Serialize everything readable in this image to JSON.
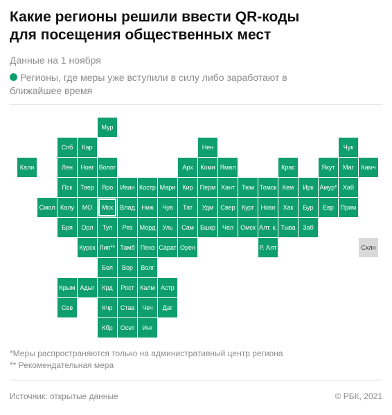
{
  "title": "Какие регионы решили ввести QR-коды\nдля посещения общественных мест",
  "subtitle": "Данные на 1 ноября",
  "legend": {
    "label": "Регионы, где меры уже вступили в силу либо заработают в ближайшее время",
    "color": "#0f9e6e"
  },
  "colors": {
    "active": "#0f9e6e",
    "inactive": "#d9d9d9"
  },
  "regions": [
    {
      "label": "Мур",
      "row": 0,
      "col": 5,
      "status": "active"
    },
    {
      "label": "Спб",
      "row": 1,
      "col": 3,
      "status": "active"
    },
    {
      "label": "Кар",
      "row": 1,
      "col": 4,
      "status": "active"
    },
    {
      "label": "Нен",
      "row": 1,
      "col": 10,
      "status": "active"
    },
    {
      "label": "Чук",
      "row": 1,
      "col": 17,
      "status": "active"
    },
    {
      "label": "Кали",
      "row": 2,
      "col": 1,
      "status": "active"
    },
    {
      "label": "Лен",
      "row": 2,
      "col": 3,
      "status": "active"
    },
    {
      "label": "Новг",
      "row": 2,
      "col": 4,
      "status": "active"
    },
    {
      "label": "Волог",
      "row": 2,
      "col": 5,
      "status": "active"
    },
    {
      "label": "Арх",
      "row": 2,
      "col": 9,
      "status": "active"
    },
    {
      "label": "Коми",
      "row": 2,
      "col": 10,
      "status": "active"
    },
    {
      "label": "Ямал",
      "row": 2,
      "col": 11,
      "status": "active"
    },
    {
      "label": "Крас",
      "row": 2,
      "col": 14,
      "status": "active"
    },
    {
      "label": "Якут",
      "row": 2,
      "col": 16,
      "status": "active"
    },
    {
      "label": "Маг",
      "row": 2,
      "col": 17,
      "status": "active"
    },
    {
      "label": "Камч",
      "row": 2,
      "col": 18,
      "status": "active"
    },
    {
      "label": "Пск",
      "row": 3,
      "col": 3,
      "status": "active"
    },
    {
      "label": "Твер",
      "row": 3,
      "col": 4,
      "status": "active"
    },
    {
      "label": "Яро",
      "row": 3,
      "col": 5,
      "status": "active"
    },
    {
      "label": "Иван",
      "row": 3,
      "col": 6,
      "status": "active"
    },
    {
      "label": "Костр",
      "row": 3,
      "col": 7,
      "status": "active"
    },
    {
      "label": "Мари",
      "row": 3,
      "col": 8,
      "status": "active"
    },
    {
      "label": "Кир",
      "row": 3,
      "col": 9,
      "status": "active"
    },
    {
      "label": "Перм",
      "row": 3,
      "col": 10,
      "status": "active"
    },
    {
      "label": "Хант",
      "row": 3,
      "col": 11,
      "status": "active"
    },
    {
      "label": "Тюм",
      "row": 3,
      "col": 12,
      "status": "active"
    },
    {
      "label": "Томск",
      "row": 3,
      "col": 13,
      "status": "active"
    },
    {
      "label": "Кем",
      "row": 3,
      "col": 14,
      "status": "active"
    },
    {
      "label": "Ирк",
      "row": 3,
      "col": 15,
      "status": "active"
    },
    {
      "label": "Амур*",
      "row": 3,
      "col": 16,
      "status": "active"
    },
    {
      "label": "Хаб",
      "row": 3,
      "col": 17,
      "status": "active"
    },
    {
      "label": "Смол",
      "row": 4,
      "col": 2,
      "status": "active"
    },
    {
      "label": "Калу",
      "row": 4,
      "col": 3,
      "status": "active"
    },
    {
      "label": "МО",
      "row": 4,
      "col": 4,
      "status": "active"
    },
    {
      "label": "Мск",
      "row": 4,
      "col": 5,
      "status": "active",
      "highlight": true
    },
    {
      "label": "Влад",
      "row": 4,
      "col": 6,
      "status": "active"
    },
    {
      "label": "Ниж",
      "row": 4,
      "col": 7,
      "status": "active"
    },
    {
      "label": "Чув",
      "row": 4,
      "col": 8,
      "status": "active"
    },
    {
      "label": "Тат",
      "row": 4,
      "col": 9,
      "status": "active"
    },
    {
      "label": "Удм",
      "row": 4,
      "col": 10,
      "status": "active"
    },
    {
      "label": "Свер",
      "row": 4,
      "col": 11,
      "status": "active"
    },
    {
      "label": "Кург",
      "row": 4,
      "col": 12,
      "status": "active"
    },
    {
      "label": "Ново",
      "row": 4,
      "col": 13,
      "status": "active"
    },
    {
      "label": "Хак",
      "row": 4,
      "col": 14,
      "status": "active"
    },
    {
      "label": "Бур",
      "row": 4,
      "col": 15,
      "status": "active"
    },
    {
      "label": "Евр",
      "row": 4,
      "col": 16,
      "status": "active"
    },
    {
      "label": "Прим",
      "row": 4,
      "col": 17,
      "status": "active"
    },
    {
      "label": "Бря",
      "row": 5,
      "col": 3,
      "status": "active"
    },
    {
      "label": "Орл",
      "row": 5,
      "col": 4,
      "status": "active"
    },
    {
      "label": "Тул",
      "row": 5,
      "col": 5,
      "status": "active"
    },
    {
      "label": "Ряз",
      "row": 5,
      "col": 6,
      "status": "active"
    },
    {
      "label": "Морд",
      "row": 5,
      "col": 7,
      "status": "active"
    },
    {
      "label": "Уль",
      "row": 5,
      "col": 8,
      "status": "active"
    },
    {
      "label": "Сам",
      "row": 5,
      "col": 9,
      "status": "active"
    },
    {
      "label": "Бшкр",
      "row": 5,
      "col": 10,
      "status": "active"
    },
    {
      "label": "Чел",
      "row": 5,
      "col": 11,
      "status": "active"
    },
    {
      "label": "Омск",
      "row": 5,
      "col": 12,
      "status": "active"
    },
    {
      "label": "Алт. к.",
      "row": 5,
      "col": 13,
      "status": "active"
    },
    {
      "label": "Тыва",
      "row": 5,
      "col": 14,
      "status": "active"
    },
    {
      "label": "Заб",
      "row": 5,
      "col": 15,
      "status": "active"
    },
    {
      "label": "Курск",
      "row": 6,
      "col": 4,
      "status": "active"
    },
    {
      "label": "Лип**",
      "row": 6,
      "col": 5,
      "status": "active"
    },
    {
      "label": "Тамб",
      "row": 6,
      "col": 6,
      "status": "active"
    },
    {
      "label": "Пенз",
      "row": 6,
      "col": 7,
      "status": "active"
    },
    {
      "label": "Сарат",
      "row": 6,
      "col": 8,
      "status": "active"
    },
    {
      "label": "Орен",
      "row": 6,
      "col": 9,
      "status": "active"
    },
    {
      "label": "Р. Алт",
      "row": 6,
      "col": 13,
      "status": "active"
    },
    {
      "label": "Схлн",
      "row": 6,
      "col": 18,
      "status": "inactive"
    },
    {
      "label": "Бел",
      "row": 7,
      "col": 5,
      "status": "active"
    },
    {
      "label": "Вор",
      "row": 7,
      "col": 6,
      "status": "active"
    },
    {
      "label": "Волг",
      "row": 7,
      "col": 7,
      "status": "active"
    },
    {
      "label": "Крым",
      "row": 8,
      "col": 3,
      "status": "active"
    },
    {
      "label": "Адыг",
      "row": 8,
      "col": 4,
      "status": "active"
    },
    {
      "label": "Крд",
      "row": 8,
      "col": 5,
      "status": "active"
    },
    {
      "label": "Рост",
      "row": 8,
      "col": 6,
      "status": "active"
    },
    {
      "label": "Калм",
      "row": 8,
      "col": 7,
      "status": "active"
    },
    {
      "label": "Астр",
      "row": 8,
      "col": 8,
      "status": "active"
    },
    {
      "label": "Сев",
      "row": 9,
      "col": 3,
      "status": "active"
    },
    {
      "label": "Кчр",
      "row": 9,
      "col": 5,
      "status": "active"
    },
    {
      "label": "Став",
      "row": 9,
      "col": 6,
      "status": "active"
    },
    {
      "label": "Чеч",
      "row": 9,
      "col": 7,
      "status": "active"
    },
    {
      "label": "Даг",
      "row": 9,
      "col": 8,
      "status": "active"
    },
    {
      "label": "Кбр",
      "row": 10,
      "col": 5,
      "status": "active"
    },
    {
      "label": "Осет",
      "row": 10,
      "col": 6,
      "status": "active"
    },
    {
      "label": "Инг",
      "row": 10,
      "col": 7,
      "status": "active"
    }
  ],
  "notes": [
    "*Меры распространяются только на административный центр региона",
    "** Рекомендательная мера"
  ],
  "footer": {
    "source": "Источник:  открытые данные",
    "copyright": "© РБК, 2021"
  }
}
